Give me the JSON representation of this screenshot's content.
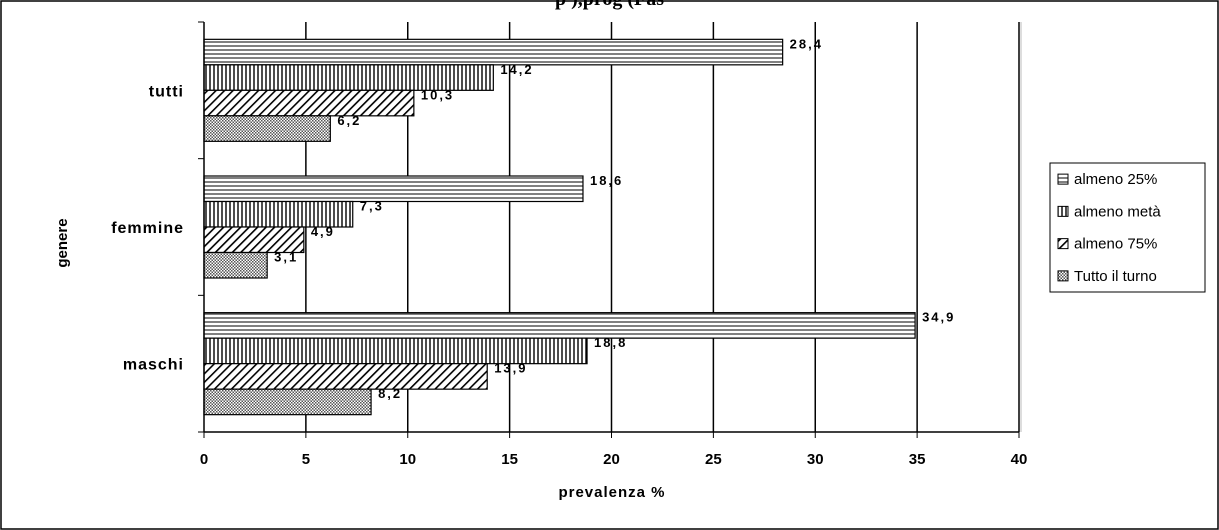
{
  "page": {
    "title_fragment": "p                                                       ),prog                (Fas"
  },
  "legend": {
    "entries": [
      "almeno 25%",
      "almeno metà",
      "almeno 75%",
      "Tutto il turno"
    ]
  },
  "colors": {
    "bar_fill": "#ffffff",
    "bar_pattern": "#000000",
    "background": "#ffffff",
    "grid": "#000000"
  },
  "chart_data": {
    "type": "bar",
    "orientation": "horizontal",
    "title": "",
    "xlabel": "prevalenza %",
    "ylabel": "genere",
    "xlim": [
      0,
      40
    ],
    "xticks": [
      0,
      5,
      10,
      15,
      20,
      25,
      30,
      35,
      40
    ],
    "categories": [
      "tutti",
      "femmine",
      "maschi"
    ],
    "series": [
      {
        "name": "almeno 25%",
        "pattern": "horizontal-lines",
        "values": [
          28.4,
          18.6,
          34.9
        ],
        "labels": [
          "28,4",
          "18,6",
          "34,9"
        ]
      },
      {
        "name": "almeno metà",
        "pattern": "vertical-lines",
        "values": [
          14.2,
          7.3,
          18.8
        ],
        "labels": [
          "14,2",
          "7,3",
          "18,8"
        ]
      },
      {
        "name": "almeno 75%",
        "pattern": "diagonal-lines",
        "values": [
          10.3,
          4.9,
          13.9
        ],
        "labels": [
          "10,3",
          "4,9",
          "13,9"
        ]
      },
      {
        "name": "Tutto il turno",
        "pattern": "crosshatch",
        "values": [
          6.2,
          3.1,
          8.2
        ],
        "labels": [
          "6,2",
          "3,1",
          "8,2"
        ]
      }
    ],
    "grid": true,
    "legend_position": "right"
  }
}
